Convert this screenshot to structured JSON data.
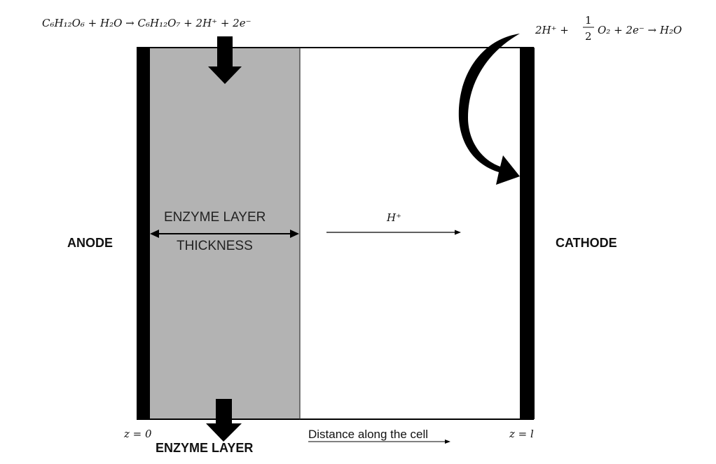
{
  "equations": {
    "anode_reaction": "C₆H₁₂O₆ + H₂O → C₆H₁₂O₇ + 2H⁺ + 2e⁻",
    "cathode_reaction_left": "2H⁺ +",
    "cathode_fraction_num": "1",
    "cathode_fraction_den": "2",
    "cathode_reaction_right": "O₂ + 2e⁻ → H₂O"
  },
  "labels": {
    "anode": "ANODE",
    "cathode": "CATHODE",
    "enzyme_layer_line1": "ENZYME LAYER",
    "enzyme_layer_line2": "THICKNESS",
    "proton": "H⁺",
    "z_start": "z = 0",
    "z_end": "z = l",
    "bottom_enzyme_layer": "ENZYME LAYER",
    "distance_axis": "Distance along the cell"
  },
  "colors": {
    "enzyme_fill": "#b3b3b3",
    "electrode": "#000000",
    "outline": "#000000"
  }
}
